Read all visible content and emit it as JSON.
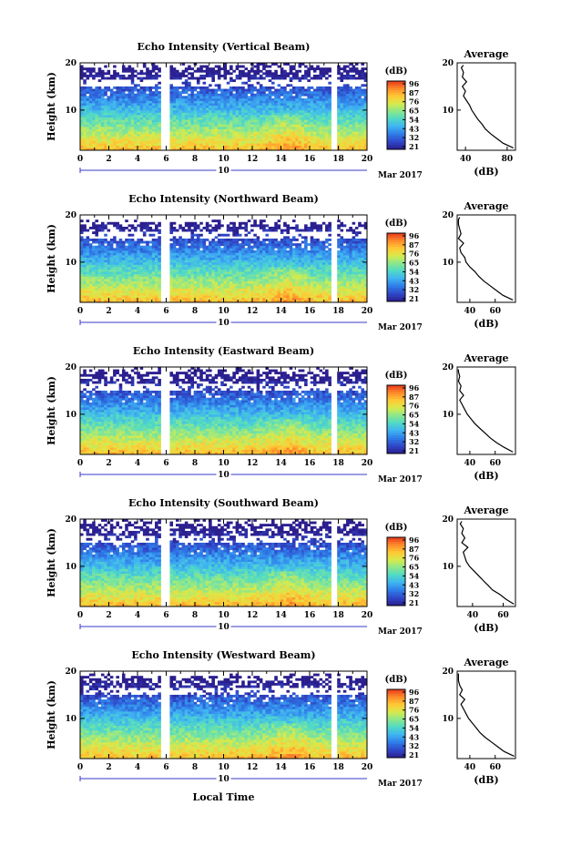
{
  "figure": {
    "xlabel": "Local Time",
    "date_label": "Mar 2017",
    "date_day": "10",
    "colorbar_unit": "(dB)",
    "average_title": "Average",
    "average_xlabel": "(dB)"
  },
  "colors": {
    "colormap": [
      "#2b1e8e",
      "#2f47c8",
      "#2f7ce8",
      "#3fb3f2",
      "#4fd9c7",
      "#8be78d",
      "#d7ea4b",
      "#ffc935",
      "#ff8a2a",
      "#e8381e"
    ],
    "gap": "#ffffff"
  },
  "chart_data": [
    {
      "type": "heatmap",
      "title": "Echo Intensity (Vertical Beam)",
      "xlabel": "Local Time",
      "ylabel": "Height (km)",
      "x_ticks": [
        "0",
        "2",
        "4",
        "6",
        "8",
        "10",
        "12",
        "14",
        "16",
        "18",
        "20"
      ],
      "xlim": [
        0,
        20
      ],
      "y_ticks": [
        "10",
        "20"
      ],
      "ylim": [
        1.5,
        20
      ],
      "colorbar": {
        "label": "(dB)",
        "ticks": [
          "96",
          "87",
          "76",
          "65",
          "54",
          "43",
          "32",
          "21"
        ],
        "range": [
          21,
          96
        ]
      },
      "data_gaps_hours": [
        [
          5.6,
          6.3
        ],
        [
          17.4,
          17.9
        ]
      ],
      "top_height_km": 19.5,
      "average_profile": {
        "title": "Average",
        "xlabel": "(dB)",
        "x_ticks": [
          "40",
          "80"
        ],
        "xlim": [
          32,
          88
        ],
        "y_ticks": [
          "10",
          "20"
        ],
        "ylim": [
          1.5,
          20
        ],
        "heights": [
          2,
          3,
          4,
          5,
          6,
          7,
          8,
          9,
          10,
          11,
          12,
          13,
          14,
          15,
          16,
          17,
          18,
          19,
          19.5
        ],
        "values": [
          86,
          76,
          70,
          64,
          59,
          56,
          52,
          49,
          46,
          44,
          41,
          38,
          40,
          37,
          41,
          37,
          38,
          36,
          38
        ]
      }
    },
    {
      "type": "heatmap",
      "title": "Echo Intensity (Northward Beam)",
      "xlabel": "Local Time",
      "ylabel": "Height (km)",
      "x_ticks": [
        "0",
        "2",
        "4",
        "6",
        "8",
        "10",
        "12",
        "14",
        "16",
        "18",
        "20"
      ],
      "xlim": [
        0,
        20
      ],
      "y_ticks": [
        "10",
        "20"
      ],
      "ylim": [
        1.5,
        20
      ],
      "colorbar": {
        "label": "(dB)",
        "ticks": [
          "96",
          "87",
          "76",
          "65",
          "54",
          "43",
          "32",
          "21"
        ],
        "range": [
          21,
          96
        ]
      },
      "data_gaps_hours": [
        [
          5.6,
          6.3
        ],
        [
          17.4,
          17.9
        ]
      ],
      "top_height_km": 18.5,
      "average_profile": {
        "title": "Average",
        "xlabel": "(dB)",
        "x_ticks": [
          "40",
          "60"
        ],
        "xlim": [
          30,
          76
        ],
        "y_ticks": [
          "10",
          "20"
        ],
        "ylim": [
          1.5,
          20
        ],
        "heights": [
          2,
          3,
          4,
          5,
          6,
          7,
          8,
          9,
          10,
          11,
          12,
          13,
          14,
          15,
          16,
          17,
          18,
          19,
          19.5
        ],
        "values": [
          74,
          66,
          61,
          56,
          51,
          47,
          44,
          40,
          37,
          36,
          33,
          32,
          35,
          31,
          33,
          32,
          31,
          31,
          32
        ]
      }
    },
    {
      "type": "heatmap",
      "title": "Echo Intensity (Eastward Beam)",
      "xlabel": "Local Time",
      "ylabel": "Height (km)",
      "x_ticks": [
        "0",
        "2",
        "4",
        "6",
        "8",
        "10",
        "12",
        "14",
        "16",
        "18",
        "20"
      ],
      "xlim": [
        0,
        20
      ],
      "y_ticks": [
        "10",
        "20"
      ],
      "ylim": [
        1.5,
        20
      ],
      "colorbar": {
        "label": "(dB)",
        "ticks": [
          "96",
          "87",
          "76",
          "65",
          "54",
          "43",
          "32",
          "21"
        ],
        "range": [
          21,
          96
        ]
      },
      "data_gaps_hours": [
        [
          5.6,
          6.3
        ],
        [
          17.4,
          17.9
        ]
      ],
      "top_height_km": 19.5,
      "average_profile": {
        "title": "Average",
        "xlabel": "(dB)",
        "x_ticks": [
          "40",
          "60"
        ],
        "xlim": [
          30,
          76
        ],
        "y_ticks": [
          "10",
          "20"
        ],
        "ylim": [
          1.5,
          20
        ],
        "heights": [
          2,
          3,
          4,
          5,
          6,
          7,
          8,
          9,
          10,
          11,
          12,
          13,
          14,
          15,
          16,
          17,
          18,
          19,
          19.5
        ],
        "values": [
          74,
          67,
          61,
          56,
          52,
          48,
          44,
          41,
          38,
          36,
          34,
          32,
          35,
          32,
          33,
          31,
          32,
          31,
          31
        ]
      }
    },
    {
      "type": "heatmap",
      "title": "Echo Intensity (Southward Beam)",
      "xlabel": "Local Time",
      "ylabel": "Height (km)",
      "x_ticks": [
        "0",
        "2",
        "4",
        "6",
        "8",
        "10",
        "12",
        "14",
        "16",
        "18",
        "20"
      ],
      "xlim": [
        0,
        20
      ],
      "y_ticks": [
        "10",
        "20"
      ],
      "ylim": [
        1.5,
        20
      ],
      "colorbar": {
        "label": "(dB)",
        "ticks": [
          "96",
          "87",
          "76",
          "65",
          "54",
          "43",
          "32",
          "21"
        ],
        "range": [
          21,
          96
        ]
      },
      "data_gaps_hours": [
        [
          5.6,
          6.3
        ],
        [
          17.4,
          17.9
        ]
      ],
      "top_height_km": 19.5,
      "average_profile": {
        "title": "Average",
        "xlabel": "(dB)",
        "x_ticks": [
          "40",
          "60"
        ],
        "xlim": [
          30,
          68
        ],
        "y_ticks": [
          "10",
          "20"
        ],
        "ylim": [
          1.5,
          20
        ],
        "heights": [
          2,
          3,
          4,
          5,
          6,
          7,
          8,
          9,
          10,
          11,
          12,
          13,
          14,
          15,
          16,
          17,
          18,
          19,
          19.5
        ],
        "values": [
          67,
          62,
          58,
          53,
          50,
          47,
          44,
          41,
          38,
          36,
          35,
          34,
          37,
          33,
          35,
          33,
          34,
          32,
          33
        ]
      }
    },
    {
      "type": "heatmap",
      "title": "Echo Intensity (Westward Beam)",
      "xlabel": "Local Time",
      "ylabel": "Height (km)",
      "x_ticks": [
        "0",
        "2",
        "4",
        "6",
        "8",
        "10",
        "12",
        "14",
        "16",
        "18",
        "20"
      ],
      "xlim": [
        0,
        20
      ],
      "y_ticks": [
        "10",
        "20"
      ],
      "ylim": [
        1.5,
        20
      ],
      "colorbar": {
        "label": "(dB)",
        "ticks": [
          "96",
          "87",
          "76",
          "65",
          "54",
          "43",
          "32",
          "21"
        ],
        "range": [
          21,
          96
        ]
      },
      "data_gaps_hours": [
        [
          5.6,
          6.3
        ],
        [
          17.4,
          17.9
        ]
      ],
      "top_height_km": 19,
      "average_profile": {
        "title": "Average",
        "xlabel": "(dB)",
        "x_ticks": [
          "40",
          "60"
        ],
        "xlim": [
          30,
          76
        ],
        "y_ticks": [
          "10",
          "20"
        ],
        "ylim": [
          1.5,
          20
        ],
        "heights": [
          2,
          3,
          4,
          5,
          6,
          7,
          8,
          9,
          10,
          11,
          12,
          13,
          14,
          15,
          16,
          17,
          18,
          19,
          19.5
        ],
        "values": [
          75,
          67,
          62,
          57,
          52,
          48,
          45,
          42,
          39,
          37,
          35,
          33,
          36,
          32,
          34,
          32,
          31,
          31,
          31
        ]
      }
    }
  ]
}
